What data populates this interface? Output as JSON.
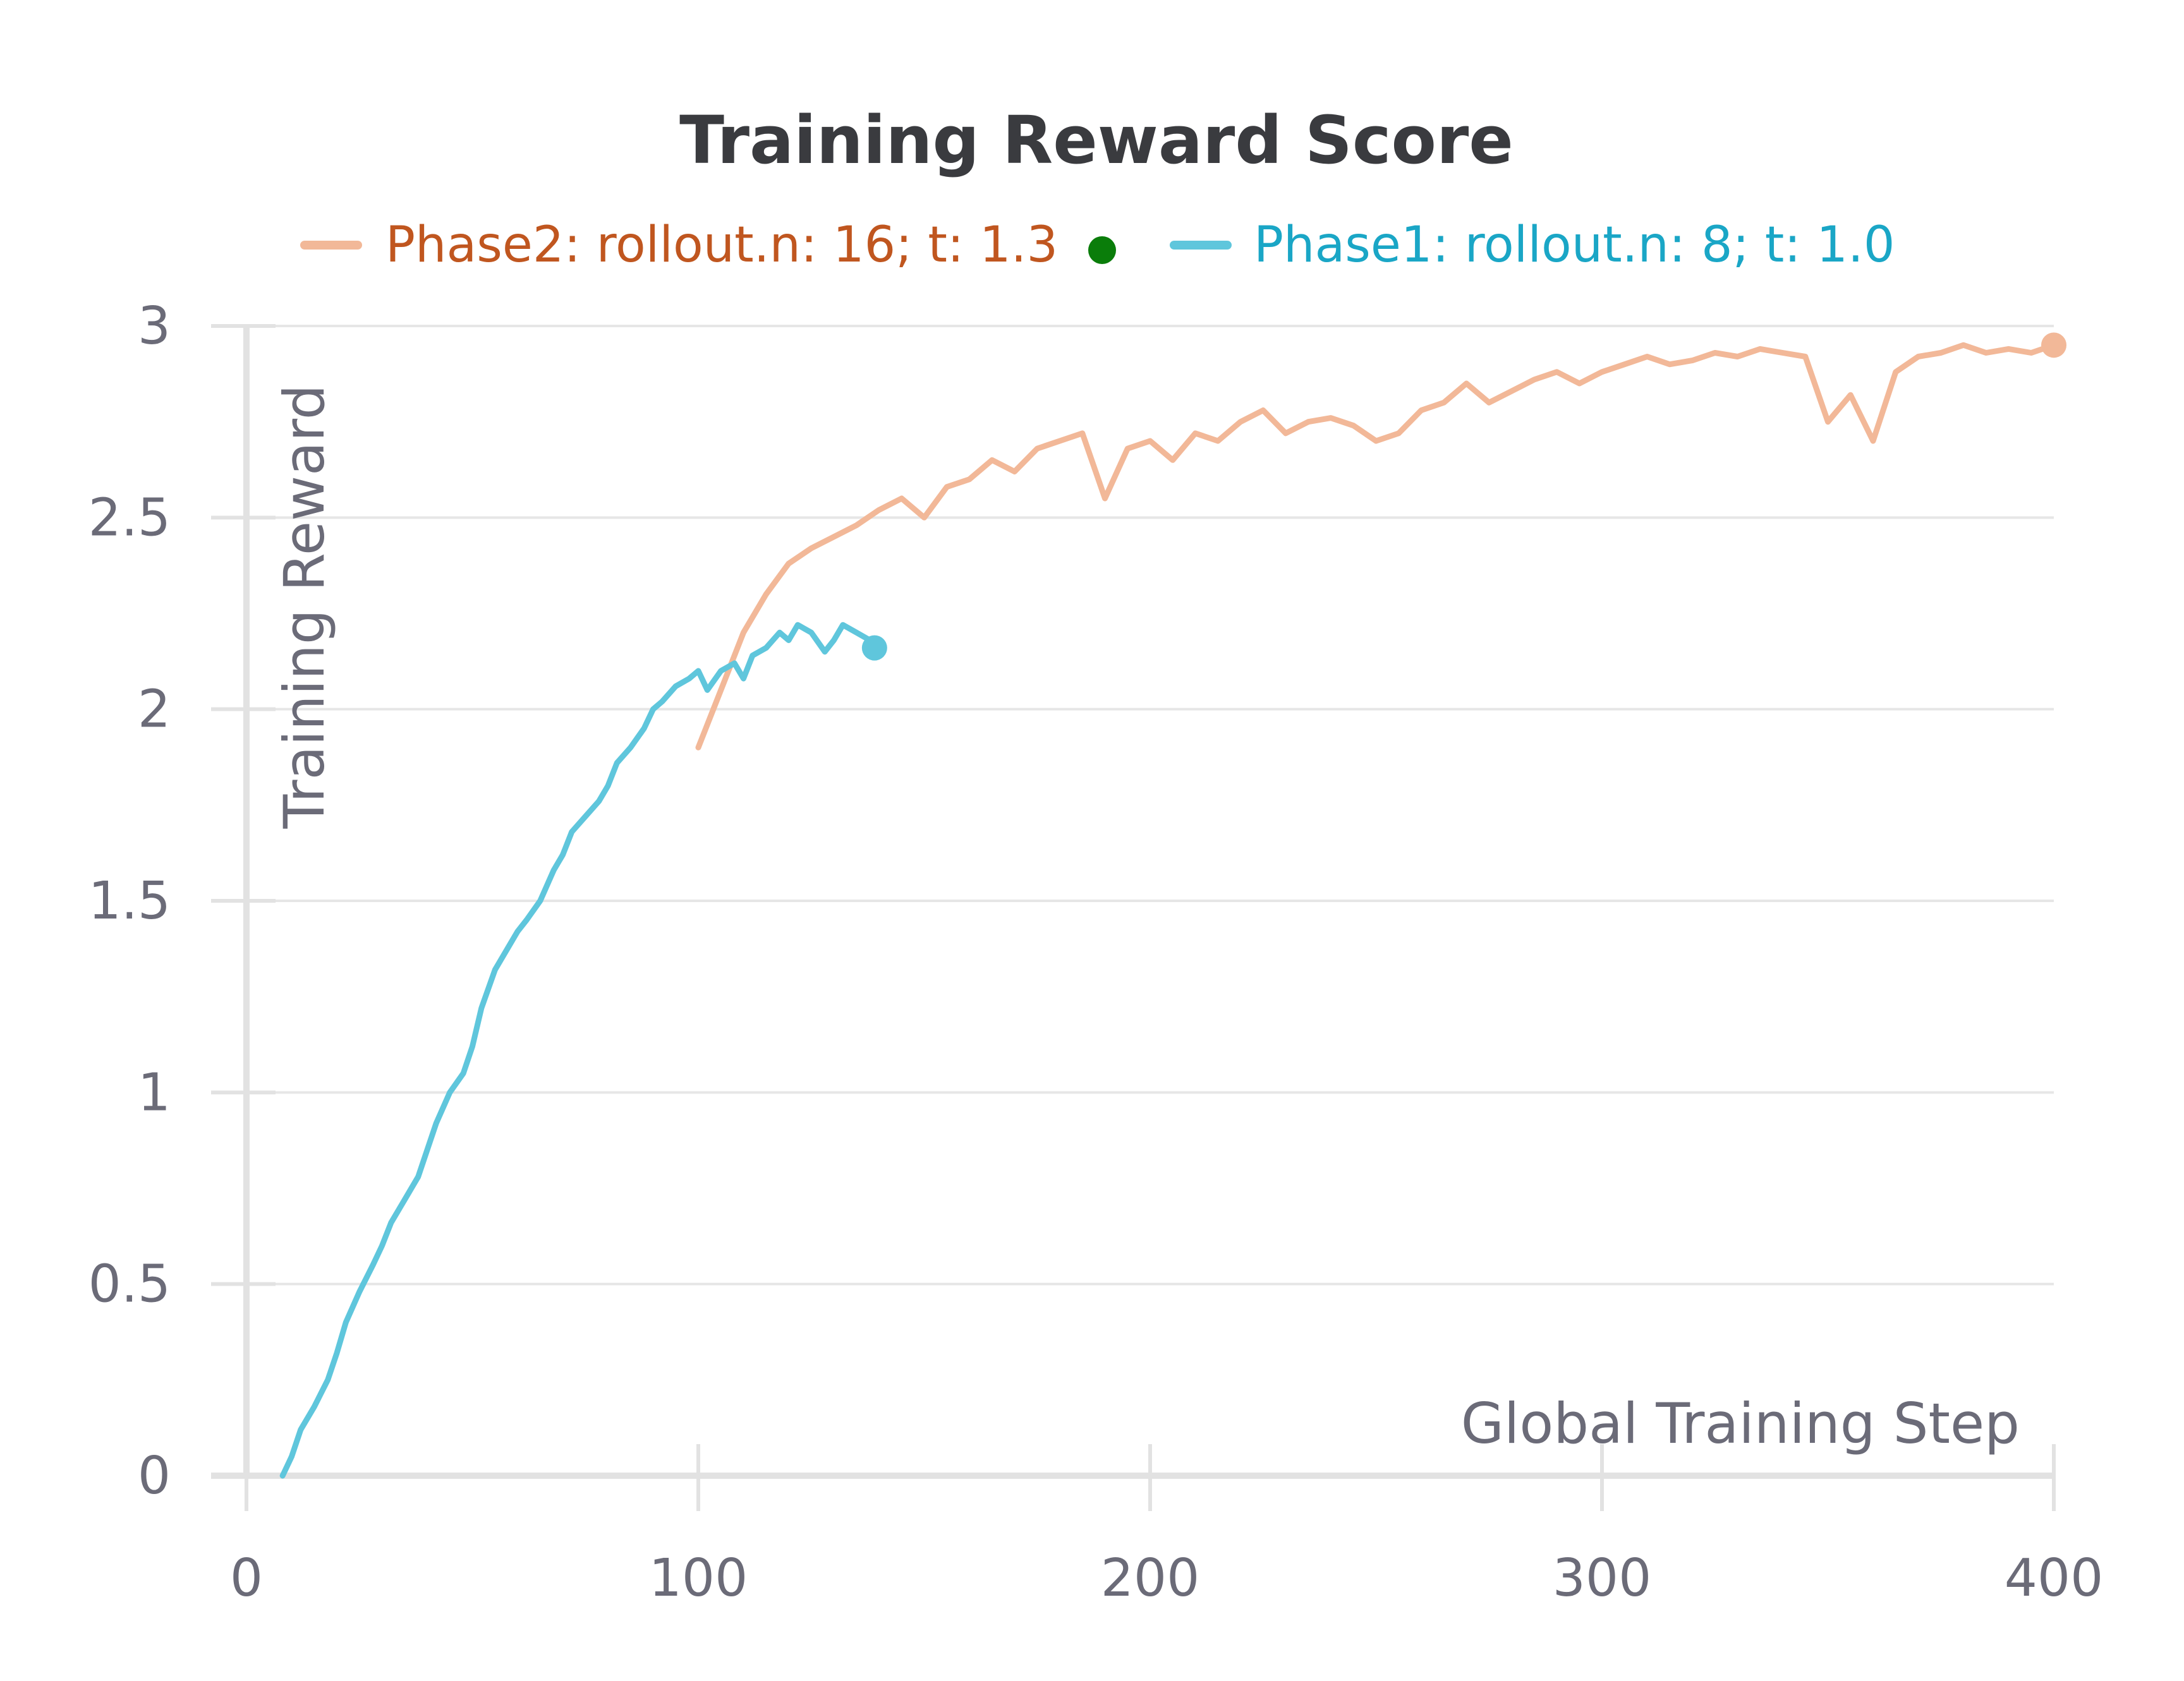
{
  "chart_data": {
    "type": "line",
    "title": "Training Reward Score",
    "xlabel": "Global Training Step",
    "ylabel": "Training Reward",
    "xlim": [
      0,
      400
    ],
    "ylim": [
      0,
      3
    ],
    "x_ticks": [
      "0",
      "100",
      "200",
      "300",
      "400"
    ],
    "y_ticks": [
      "0",
      "0.5",
      "1",
      "1.5",
      "2",
      "2.5",
      "3"
    ],
    "grid": true,
    "legend_position": "top",
    "legend_marker_color": "#0a7d0a",
    "series": [
      {
        "name": "Phase2: rollout.n: 16; t: 1.3",
        "color": "#f2b898",
        "label_color": "#c0561f",
        "x": [
          100,
          105,
          110,
          115,
          120,
          125,
          130,
          135,
          140,
          145,
          150,
          155,
          160,
          165,
          170,
          175,
          180,
          185,
          190,
          195,
          200,
          205,
          210,
          215,
          220,
          225,
          230,
          235,
          240,
          245,
          250,
          255,
          260,
          265,
          270,
          275,
          280,
          285,
          290,
          295,
          300,
          305,
          310,
          315,
          320,
          325,
          330,
          335,
          340,
          345,
          350,
          355,
          360,
          365,
          370,
          375,
          380,
          385,
          390,
          395,
          400
        ],
        "y": [
          1.9,
          2.05,
          2.2,
          2.3,
          2.38,
          2.42,
          2.45,
          2.48,
          2.52,
          2.55,
          2.5,
          2.58,
          2.6,
          2.65,
          2.62,
          2.68,
          2.7,
          2.72,
          2.55,
          2.68,
          2.7,
          2.65,
          2.72,
          2.7,
          2.75,
          2.78,
          2.72,
          2.75,
          2.76,
          2.74,
          2.7,
          2.72,
          2.78,
          2.8,
          2.85,
          2.8,
          2.83,
          2.86,
          2.88,
          2.85,
          2.88,
          2.9,
          2.92,
          2.9,
          2.91,
          2.93,
          2.92,
          2.94,
          2.93,
          2.92,
          2.75,
          2.82,
          2.7,
          2.88,
          2.92,
          2.93,
          2.95,
          2.93,
          2.94,
          2.93,
          2.95
        ]
      },
      {
        "name": "Phase1: rollout.n: 8; t: 1.0",
        "color": "#5fc6dc",
        "label_color": "#1aa6c6",
        "x": [
          8,
          10,
          12,
          15,
          18,
          20,
          22,
          25,
          28,
          30,
          32,
          35,
          38,
          40,
          42,
          45,
          48,
          50,
          52,
          55,
          58,
          60,
          62,
          65,
          68,
          70,
          72,
          75,
          78,
          80,
          82,
          85,
          88,
          90,
          92,
          95,
          98,
          100,
          102,
          105,
          108,
          110,
          112,
          115,
          118,
          120,
          122,
          125,
          128,
          130,
          132,
          135,
          138,
          139
        ],
        "y": [
          0.0,
          0.05,
          0.12,
          0.18,
          0.25,
          0.32,
          0.4,
          0.48,
          0.55,
          0.6,
          0.66,
          0.72,
          0.78,
          0.85,
          0.92,
          1.0,
          1.05,
          1.12,
          1.22,
          1.32,
          1.38,
          1.42,
          1.45,
          1.5,
          1.58,
          1.62,
          1.68,
          1.72,
          1.76,
          1.8,
          1.86,
          1.9,
          1.95,
          2.0,
          2.02,
          2.06,
          2.08,
          2.1,
          2.05,
          2.1,
          2.12,
          2.08,
          2.14,
          2.16,
          2.2,
          2.18,
          2.22,
          2.2,
          2.15,
          2.18,
          2.22,
          2.2,
          2.18,
          2.16
        ]
      }
    ]
  }
}
